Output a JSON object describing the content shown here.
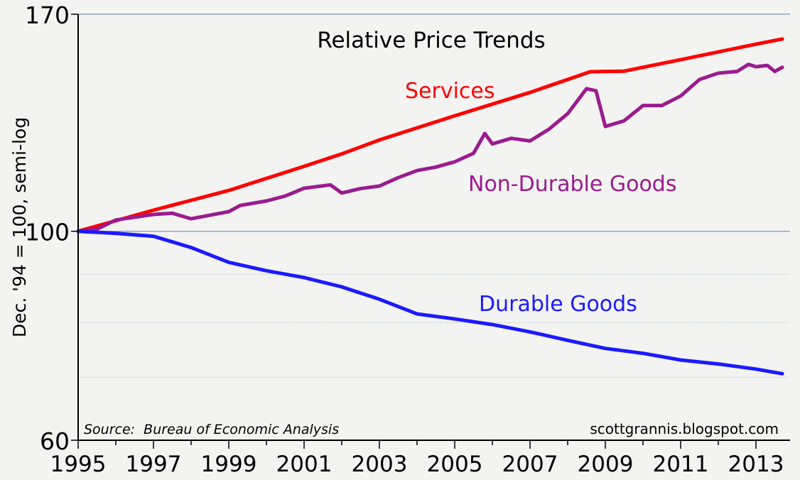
{
  "chart_data": {
    "type": "line",
    "title": "Relative Price Trends",
    "ylabel": "Dec. '94 = 100, semi-log",
    "xlabel": "",
    "yscale": "log",
    "ylim": [
      60,
      170
    ],
    "xlim": [
      1995,
      2013.9
    ],
    "yticks": [
      60,
      100,
      170
    ],
    "ygrid_solid": [
      100,
      170
    ],
    "ygrid_dotted": [
      90,
      80,
      70
    ],
    "xticks": [
      "1995",
      "1997",
      "1999",
      "2001",
      "2003",
      "2005",
      "2007",
      "2009",
      "2011",
      "2013"
    ],
    "source": "Source:  Bureau of Economic Analysis",
    "credit": "scottgrannis.blogspot.com",
    "series": [
      {
        "name": "Services",
        "color": "#ff0000",
        "x": [
          1995,
          1997,
          1999,
          2001,
          2002,
          2003,
          2005,
          2007,
          2008.6,
          2009.5,
          2011,
          2013,
          2013.7
        ],
        "y": [
          100,
          105.3,
          110.5,
          117.2,
          120.8,
          125,
          132.6,
          140.4,
          147.7,
          147.9,
          152.1,
          158,
          160
        ]
      },
      {
        "name": "Non-Durable Goods",
        "color": "#9b1b8e",
        "x": [
          1995,
          1995.5,
          1996,
          1996.5,
          1997,
          1997.5,
          1998,
          1998.5,
          1999,
          1999.3,
          2000,
          2000.5,
          2001,
          2001.7,
          2002,
          2002.5,
          2003,
          2003.5,
          2004,
          2004.5,
          2005,
          2005.5,
          2005.8,
          2006,
          2006.5,
          2007,
          2007.5,
          2008,
          2008.5,
          2008.75,
          2009,
          2009.5,
          2010,
          2010.5,
          2011,
          2011.5,
          2012,
          2012.5,
          2012.8,
          2013,
          2013.3,
          2013.5,
          2013.7
        ],
        "y": [
          100,
          100.5,
          102.8,
          103.5,
          104.2,
          104.5,
          103.1,
          104,
          104.9,
          106.5,
          107.7,
          109,
          111.1,
          112,
          109.8,
          111,
          111.7,
          114,
          116,
          117,
          118.5,
          121,
          127,
          123.8,
          125.5,
          124.7,
          128.3,
          133.3,
          141.7,
          141,
          129.2,
          131,
          136,
          136,
          139.2,
          144.9,
          147.2,
          147.8,
          150.4,
          149.5,
          150,
          147.8,
          149.3
        ]
      },
      {
        "name": "Durable Goods",
        "color": "#1a1aff",
        "x": [
          1995,
          1996,
          1997,
          1998,
          1999,
          2000,
          2001,
          2002,
          2003,
          2004,
          2005,
          2006,
          2007,
          2008,
          2009,
          2010,
          2011,
          2012,
          2013,
          2013.7
        ],
        "y": [
          100,
          99.5,
          98.8,
          96.1,
          92.7,
          90.8,
          89.3,
          87.3,
          84.7,
          81.7,
          80.7,
          79.6,
          78.2,
          76.6,
          75.1,
          74.2,
          73.0,
          72.3,
          71.4,
          70.6
        ]
      }
    ]
  }
}
